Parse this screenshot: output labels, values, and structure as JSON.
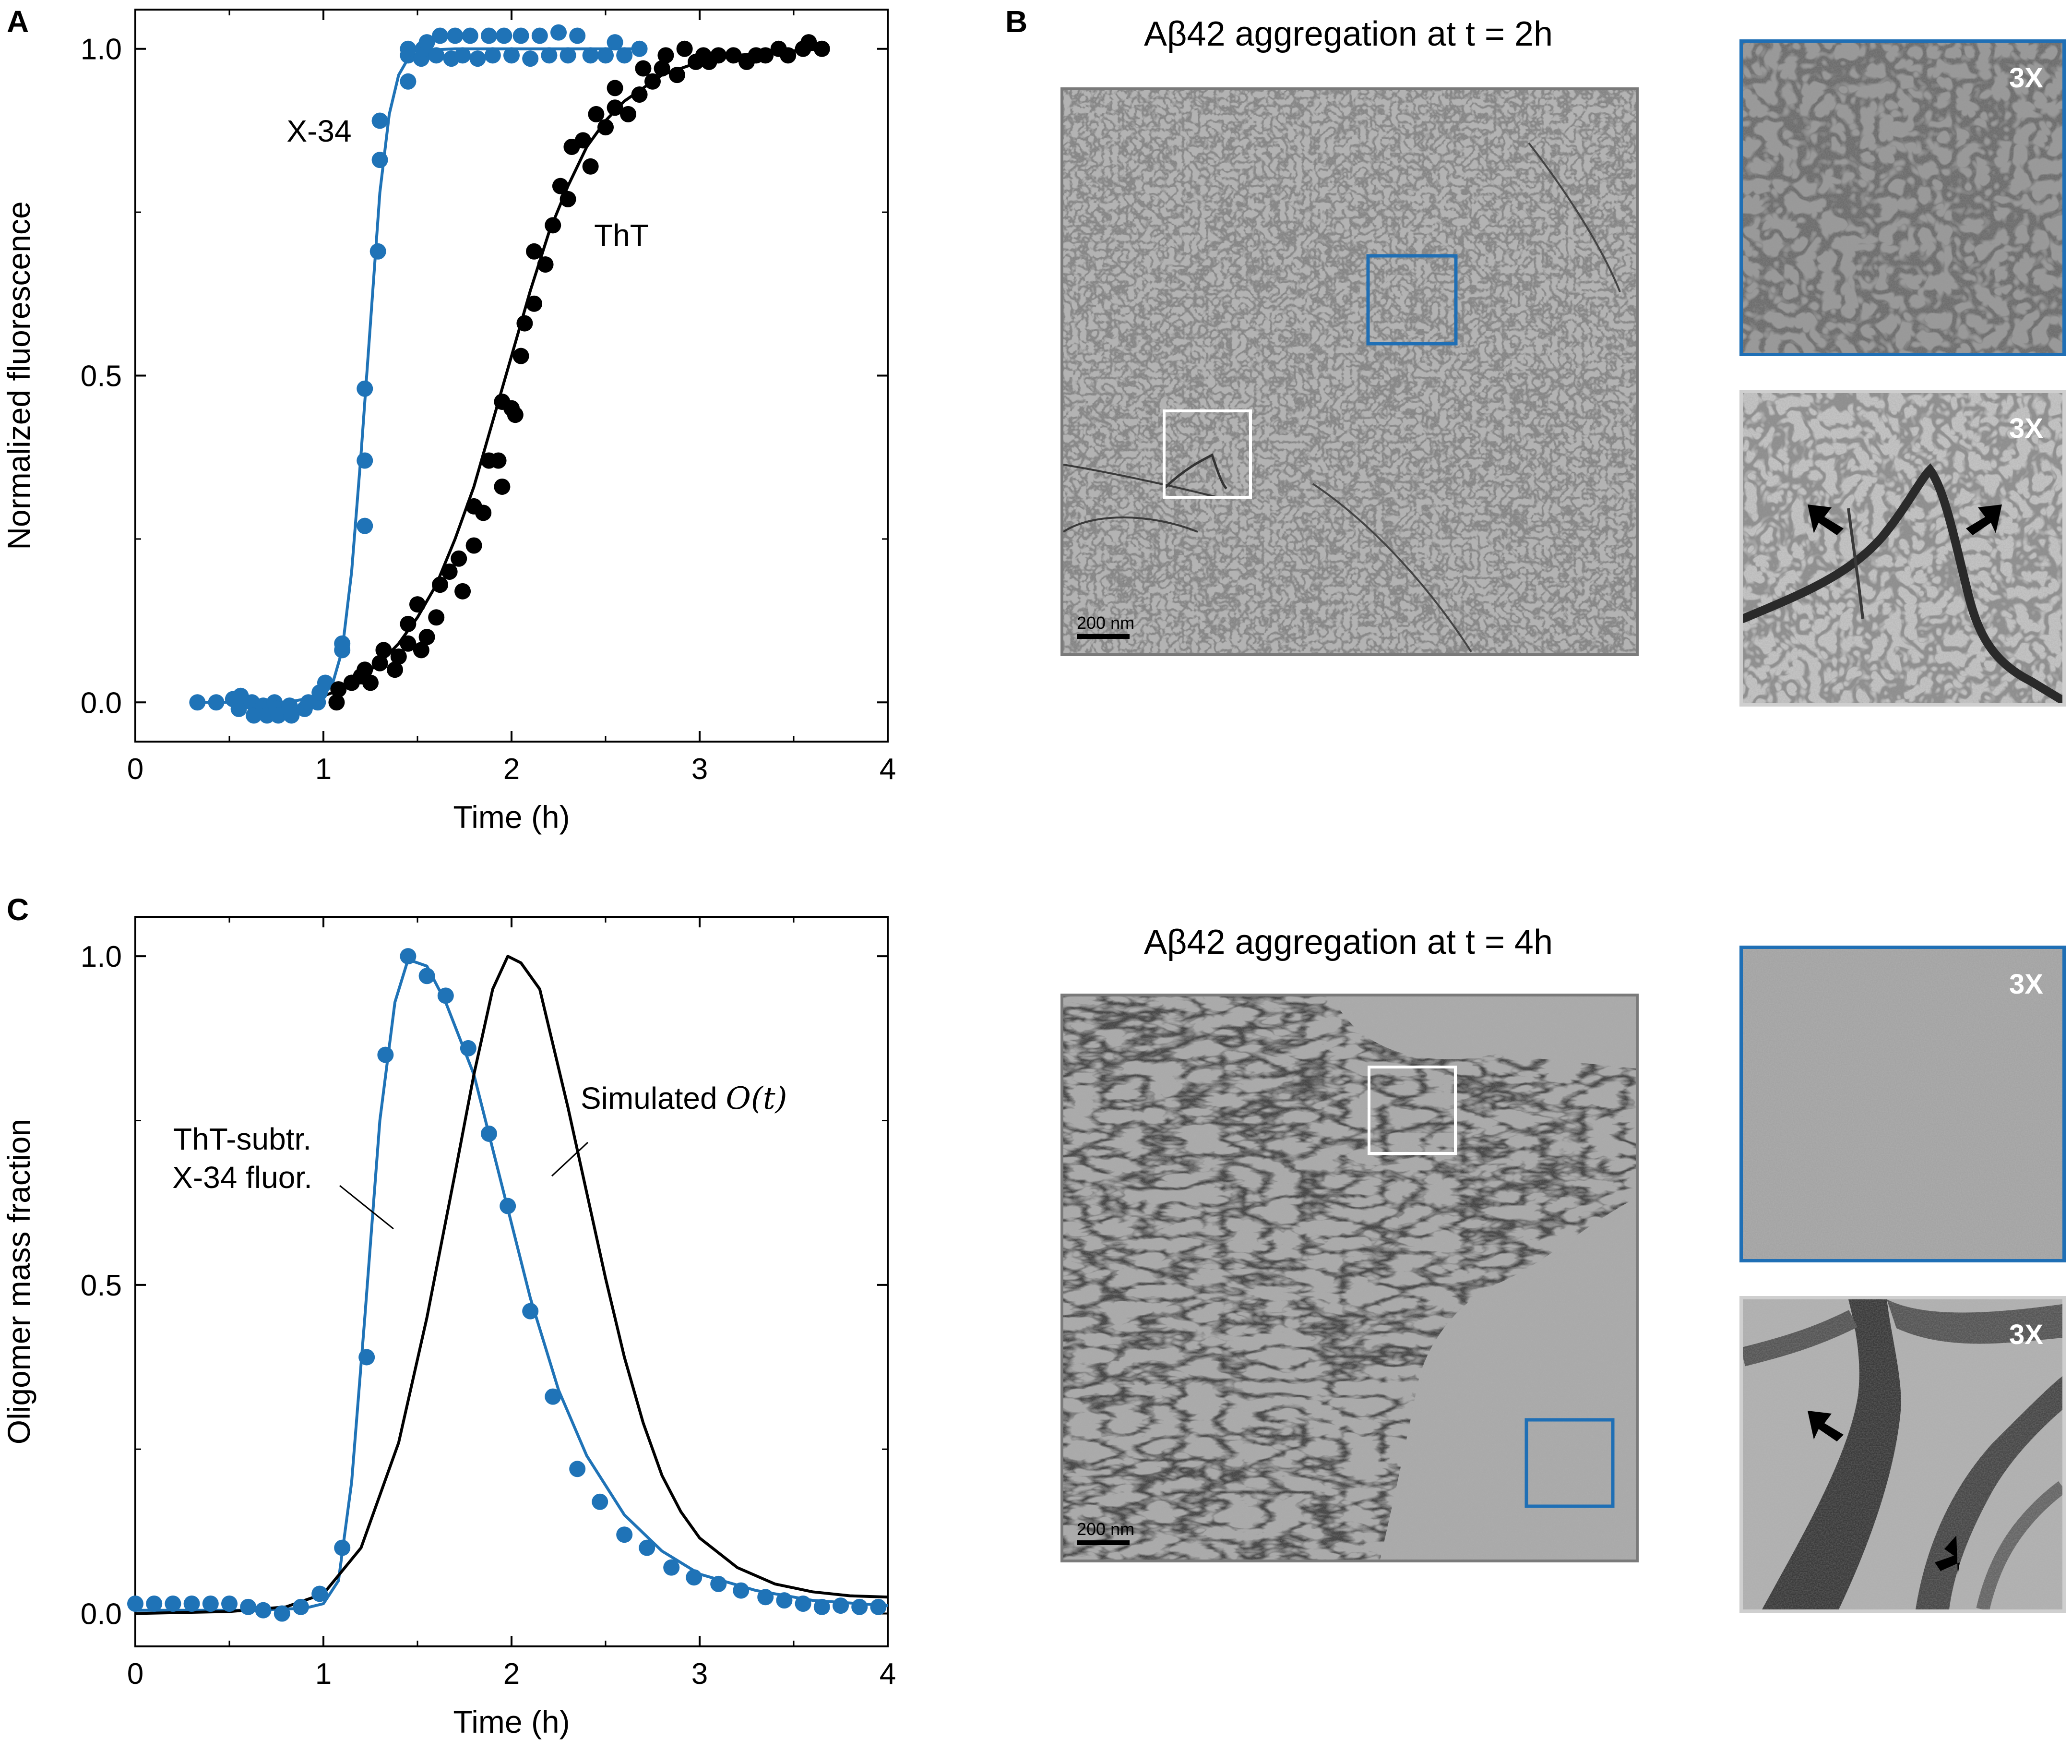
{
  "panels": {
    "a": "A",
    "b": "B",
    "c": "C"
  },
  "colors": {
    "blue": "#1f73b7",
    "black": "#000000",
    "em_border": "#7a7a7a",
    "zoom_border_blue": "#1f6fb5",
    "zoom_border_gray": "#cfcfcf"
  },
  "chart_data": [
    {
      "id": "A",
      "type": "scatter",
      "xlabel": "Time (h)",
      "ylabel": "Normalized fluorescence",
      "xlim": [
        0,
        4
      ],
      "ylim": [
        -0.06,
        1.06
      ],
      "xticks": [
        0,
        1,
        2,
        3,
        4
      ],
      "yticks": [
        0.0,
        0.5,
        1.0
      ],
      "xticklabels": [
        "0",
        "1",
        "2",
        "3",
        "4"
      ],
      "yticklabels": [
        "0.0",
        "0.5",
        "1.0"
      ],
      "annotations": [
        "X-34",
        "ThT"
      ],
      "series": [
        {
          "name": "X-34",
          "color": "#1f73b7",
          "points": [
            [
              0.33,
              0.0
            ],
            [
              0.43,
              0.0
            ],
            [
              0.52,
              0.005
            ],
            [
              0.55,
              -0.01
            ],
            [
              0.56,
              0.01
            ],
            [
              0.62,
              0.0
            ],
            [
              0.63,
              -0.02
            ],
            [
              0.68,
              -0.005
            ],
            [
              0.7,
              -0.01
            ],
            [
              0.7,
              -0.02
            ],
            [
              0.74,
              0.0
            ],
            [
              0.75,
              -0.01
            ],
            [
              0.76,
              -0.02
            ],
            [
              0.82,
              -0.005
            ],
            [
              0.83,
              -0.02
            ],
            [
              0.9,
              -0.01
            ],
            [
              0.92,
              0.0
            ],
            [
              0.97,
              0.0
            ],
            [
              0.98,
              0.015
            ],
            [
              1.01,
              0.03
            ],
            [
              1.1,
              0.08
            ],
            [
              1.1,
              0.09
            ],
            [
              1.22,
              0.27
            ],
            [
              1.22,
              0.37
            ],
            [
              1.22,
              0.48
            ],
            [
              1.29,
              0.69
            ],
            [
              1.3,
              0.83
            ],
            [
              1.3,
              0.89
            ],
            [
              1.45,
              0.95
            ],
            [
              1.45,
              0.99
            ],
            [
              1.45,
              1.0
            ],
            [
              1.52,
              0.985
            ],
            [
              1.53,
              1.0
            ],
            [
              1.55,
              1.01
            ],
            [
              1.6,
              0.99
            ],
            [
              1.62,
              1.02
            ],
            [
              1.68,
              0.985
            ],
            [
              1.7,
              1.02
            ],
            [
              1.74,
              0.99
            ],
            [
              1.78,
              1.02
            ],
            [
              1.82,
              0.985
            ],
            [
              1.88,
              1.02
            ],
            [
              1.9,
              0.99
            ],
            [
              1.96,
              1.02
            ],
            [
              2.0,
              0.99
            ],
            [
              2.05,
              1.02
            ],
            [
              2.1,
              0.985
            ],
            [
              2.15,
              1.02
            ],
            [
              2.2,
              0.99
            ],
            [
              2.25,
              1.025
            ],
            [
              2.3,
              0.99
            ],
            [
              2.35,
              1.02
            ],
            [
              2.42,
              0.99
            ],
            [
              2.5,
              0.99
            ],
            [
              2.55,
              1.01
            ],
            [
              2.6,
              0.99
            ],
            [
              2.68,
              1.0
            ]
          ],
          "fit": [
            [
              0.3,
              0.0
            ],
            [
              0.8,
              0.0
            ],
            [
              1.0,
              0.01
            ],
            [
              1.05,
              0.03
            ],
            [
              1.1,
              0.08
            ],
            [
              1.15,
              0.2
            ],
            [
              1.2,
              0.38
            ],
            [
              1.25,
              0.58
            ],
            [
              1.3,
              0.78
            ],
            [
              1.35,
              0.9
            ],
            [
              1.4,
              0.96
            ],
            [
              1.45,
              0.985
            ],
            [
              1.55,
              0.998
            ],
            [
              1.7,
              1.0
            ],
            [
              2.7,
              1.0
            ]
          ]
        },
        {
          "name": "ThT",
          "color": "#000000",
          "points": [
            [
              1.07,
              0.0
            ],
            [
              1.08,
              0.02
            ],
            [
              1.15,
              0.03
            ],
            [
              1.2,
              0.04
            ],
            [
              1.22,
              0.05
            ],
            [
              1.25,
              0.03
            ],
            [
              1.3,
              0.06
            ],
            [
              1.32,
              0.08
            ],
            [
              1.38,
              0.05
            ],
            [
              1.4,
              0.07
            ],
            [
              1.45,
              0.09
            ],
            [
              1.45,
              0.12
            ],
            [
              1.5,
              0.15
            ],
            [
              1.52,
              0.08
            ],
            [
              1.55,
              0.1
            ],
            [
              1.6,
              0.13
            ],
            [
              1.62,
              0.18
            ],
            [
              1.67,
              0.2
            ],
            [
              1.72,
              0.22
            ],
            [
              1.74,
              0.17
            ],
            [
              1.8,
              0.24
            ],
            [
              1.8,
              0.3
            ],
            [
              1.85,
              0.29
            ],
            [
              1.88,
              0.37
            ],
            [
              1.93,
              0.37
            ],
            [
              1.95,
              0.33
            ],
            [
              1.95,
              0.46
            ],
            [
              2.0,
              0.45
            ],
            [
              2.02,
              0.44
            ],
            [
              2.05,
              0.53
            ],
            [
              2.07,
              0.58
            ],
            [
              2.12,
              0.61
            ],
            [
              2.12,
              0.69
            ],
            [
              2.18,
              0.67
            ],
            [
              2.22,
              0.73
            ],
            [
              2.26,
              0.79
            ],
            [
              2.3,
              0.77
            ],
            [
              2.32,
              0.85
            ],
            [
              2.38,
              0.86
            ],
            [
              2.42,
              0.82
            ],
            [
              2.45,
              0.9
            ],
            [
              2.5,
              0.88
            ],
            [
              2.55,
              0.91
            ],
            [
              2.55,
              0.94
            ],
            [
              2.62,
              0.9
            ],
            [
              2.68,
              0.93
            ],
            [
              2.7,
              0.97
            ],
            [
              2.75,
              0.95
            ],
            [
              2.8,
              0.97
            ],
            [
              2.82,
              0.99
            ],
            [
              2.88,
              0.96
            ],
            [
              2.92,
              1.0
            ],
            [
              2.98,
              0.98
            ],
            [
              3.02,
              0.99
            ],
            [
              3.05,
              0.98
            ],
            [
              3.1,
              0.99
            ],
            [
              3.18,
              0.99
            ],
            [
              3.25,
              0.98
            ],
            [
              3.3,
              0.99
            ],
            [
              3.35,
              0.99
            ],
            [
              3.42,
              1.0
            ],
            [
              3.47,
              0.99
            ],
            [
              3.55,
              1.0
            ],
            [
              3.58,
              1.01
            ],
            [
              3.65,
              1.0
            ]
          ],
          "fit": [
            [
              1.0,
              0.01
            ],
            [
              1.1,
              0.02
            ],
            [
              1.2,
              0.04
            ],
            [
              1.3,
              0.06
            ],
            [
              1.4,
              0.09
            ],
            [
              1.5,
              0.13
            ],
            [
              1.6,
              0.18
            ],
            [
              1.7,
              0.25
            ],
            [
              1.8,
              0.33
            ],
            [
              1.9,
              0.43
            ],
            [
              2.0,
              0.53
            ],
            [
              2.1,
              0.63
            ],
            [
              2.2,
              0.72
            ],
            [
              2.3,
              0.79
            ],
            [
              2.4,
              0.85
            ],
            [
              2.5,
              0.89
            ],
            [
              2.6,
              0.92
            ],
            [
              2.8,
              0.96
            ],
            [
              3.0,
              0.98
            ],
            [
              3.2,
              0.99
            ],
            [
              3.4,
              0.995
            ],
            [
              3.65,
              1.0
            ]
          ]
        }
      ]
    },
    {
      "id": "C",
      "type": "line",
      "xlabel": "Time (h)",
      "ylabel": "Oligomer mass fraction",
      "xlim": [
        0,
        4
      ],
      "ylim": [
        -0.05,
        1.06
      ],
      "xticks": [
        0,
        1,
        2,
        3,
        4
      ],
      "yticks": [
        0.0,
        0.5,
        1.0
      ],
      "xticklabels": [
        "0",
        "1",
        "2",
        "3",
        "4"
      ],
      "yticklabels": [
        "0.0",
        "0.5",
        "1.0"
      ],
      "annotations": [
        "ThT-subtr.",
        "X-34 fluor.",
        "Simulated "
      ],
      "simulated_symbol": "O(t)",
      "series": [
        {
          "name": "ThT-subtr. X-34 fluor.",
          "color": "#1f73b7",
          "points": [
            [
              0.0,
              0.015
            ],
            [
              0.1,
              0.015
            ],
            [
              0.2,
              0.015
            ],
            [
              0.3,
              0.015
            ],
            [
              0.4,
              0.015
            ],
            [
              0.5,
              0.015
            ],
            [
              0.6,
              0.01
            ],
            [
              0.68,
              0.005
            ],
            [
              0.78,
              0.0
            ],
            [
              0.88,
              0.01
            ],
            [
              0.98,
              0.03
            ],
            [
              1.1,
              0.1
            ],
            [
              1.23,
              0.39
            ],
            [
              1.33,
              0.85
            ],
            [
              1.45,
              1.0
            ],
            [
              1.55,
              0.97
            ],
            [
              1.65,
              0.94
            ],
            [
              1.77,
              0.86
            ],
            [
              1.88,
              0.73
            ],
            [
              1.98,
              0.62
            ],
            [
              2.1,
              0.46
            ],
            [
              2.22,
              0.33
            ],
            [
              2.35,
              0.22
            ],
            [
              2.47,
              0.17
            ],
            [
              2.6,
              0.12
            ],
            [
              2.72,
              0.1
            ],
            [
              2.85,
              0.07
            ],
            [
              2.97,
              0.055
            ],
            [
              3.1,
              0.045
            ],
            [
              3.22,
              0.035
            ],
            [
              3.35,
              0.025
            ],
            [
              3.45,
              0.02
            ],
            [
              3.55,
              0.015
            ],
            [
              3.65,
              0.01
            ],
            [
              3.75,
              0.012
            ],
            [
              3.85,
              0.01
            ],
            [
              3.95,
              0.01
            ]
          ],
          "fit": [
            [
              0.0,
              0.005
            ],
            [
              0.6,
              0.005
            ],
            [
              0.9,
              0.008
            ],
            [
              1.0,
              0.015
            ],
            [
              1.08,
              0.05
            ],
            [
              1.15,
              0.2
            ],
            [
              1.22,
              0.45
            ],
            [
              1.3,
              0.75
            ],
            [
              1.38,
              0.93
            ],
            [
              1.45,
              0.995
            ],
            [
              1.55,
              0.985
            ],
            [
              1.65,
              0.93
            ],
            [
              1.8,
              0.82
            ],
            [
              1.95,
              0.65
            ],
            [
              2.1,
              0.48
            ],
            [
              2.25,
              0.34
            ],
            [
              2.4,
              0.24
            ],
            [
              2.6,
              0.15
            ],
            [
              2.8,
              0.095
            ],
            [
              3.0,
              0.06
            ],
            [
              3.3,
              0.035
            ],
            [
              3.6,
              0.02
            ],
            [
              4.0,
              0.012
            ]
          ]
        },
        {
          "name": "Simulated O(t)",
          "color": "#000000",
          "fit": [
            [
              0.0,
              0.0
            ],
            [
              0.5,
              0.003
            ],
            [
              0.8,
              0.01
            ],
            [
              1.0,
              0.03
            ],
            [
              1.2,
              0.1
            ],
            [
              1.4,
              0.26
            ],
            [
              1.55,
              0.45
            ],
            [
              1.7,
              0.67
            ],
            [
              1.8,
              0.82
            ],
            [
              1.9,
              0.95
            ],
            [
              1.98,
              1.0
            ],
            [
              2.05,
              0.99
            ],
            [
              2.15,
              0.95
            ],
            [
              2.2,
              0.89
            ],
            [
              2.3,
              0.77
            ],
            [
              2.4,
              0.64
            ],
            [
              2.5,
              0.51
            ],
            [
              2.6,
              0.39
            ],
            [
              2.7,
              0.29
            ],
            [
              2.8,
              0.21
            ],
            [
              2.9,
              0.155
            ],
            [
              3.0,
              0.115
            ],
            [
              3.2,
              0.07
            ],
            [
              3.4,
              0.045
            ],
            [
              3.6,
              0.033
            ],
            [
              3.8,
              0.027
            ],
            [
              4.0,
              0.025
            ]
          ]
        }
      ]
    }
  ],
  "em": {
    "top_title": "Aβ42 aggregation at t = 2h",
    "bottom_title": "Aβ42 aggregation at t = 4h",
    "scale_top": "200 nm",
    "scale_bottom": "200 nm",
    "zoom_labels": [
      "3X",
      "3X",
      "3X",
      "3X"
    ]
  }
}
